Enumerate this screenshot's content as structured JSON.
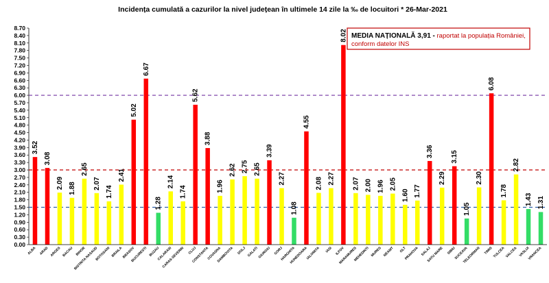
{
  "chart_data": {
    "type": "bar",
    "title": "Incidența cumulată a cazurilor la nivel județean în ultimele 14 zile   la ‰ de locuitori  *  26-Mar-2021",
    "xlabel": "",
    "ylabel": "",
    "ylim": [
      0,
      8.7
    ],
    "yticks": [
      "0.00",
      "0.30",
      "0.60",
      "0.90",
      "1.20",
      "1.50",
      "1.80",
      "2.10",
      "2.40",
      "2.70",
      "3.00",
      "3.30",
      "3.60",
      "3.90",
      "4.20",
      "4.50",
      "4.80",
      "5.10",
      "5.40",
      "5.70",
      "6.00",
      "6.30",
      "6.60",
      "6.90",
      "7.20",
      "7.50",
      "7.80",
      "8.10",
      "8.40",
      "8.70"
    ],
    "categories": [
      "ALBA",
      "ARAD",
      "ARGES",
      "BACAU",
      "BIHOR",
      "BISTRITA NASAUD",
      "BOTOSANI",
      "BRAILA",
      "BRASOV",
      "BUCURESTI",
      "BUZAU",
      "CALARASI",
      "CARAS-SEVERIN",
      "CLUJ",
      "CONSTANTA",
      "COVASNA",
      "DAMBOVITA",
      "DOLJ",
      "GALATI",
      "GIURGIU",
      "GORJ",
      "HARGHITA",
      "HUNEDOARA",
      "IALOMITA",
      "IASI",
      "ILFOV",
      "MARAMURES",
      "MEHEDINTI",
      "MURES",
      "NEAMT",
      "OLT",
      "PRAHOVA",
      "SALAJ",
      "SATU MARE",
      "SIBIU",
      "SUCEAVA",
      "TELEORMAN",
      "TIMIS",
      "TULCEA",
      "VALCEA",
      "VASLUI",
      "VRANCEA"
    ],
    "values": [
      3.52,
      3.08,
      2.09,
      1.88,
      2.65,
      2.07,
      1.74,
      2.41,
      5.02,
      6.67,
      1.28,
      2.14,
      1.74,
      5.62,
      3.88,
      1.96,
      2.62,
      2.75,
      2.65,
      3.39,
      2.27,
      1.08,
      4.55,
      2.08,
      2.27,
      8.02,
      2.07,
      2.0,
      1.96,
      2.05,
      1.6,
      1.77,
      3.36,
      2.29,
      3.15,
      1.05,
      2.3,
      6.08,
      1.78,
      2.82,
      1.43,
      1.31
    ],
    "value_labels": [
      "3.52",
      "3.08",
      "2.09",
      "1.88",
      "2.65",
      "2.07",
      "1.74",
      "2.41",
      "5.02",
      "6.67",
      "1.28",
      "2.14",
      "1.74",
      "5.62",
      "3.88",
      "1.96",
      "2.62",
      "2.75",
      "2.65",
      "3.39",
      "2.27",
      "1.08",
      "4.55",
      "2.08",
      "2.27",
      "8.02",
      "2.07",
      "2.00",
      "1.96",
      "2.05",
      "1.60",
      "1.77",
      "3.36",
      "2.29",
      "3.15",
      "1.05",
      "2.30",
      "6.08",
      "1.78",
      "2.82",
      "1.43",
      "1.31"
    ],
    "thresholds": [
      {
        "value": 1.5,
        "color": "#2f5fa8",
        "style": "dashed"
      },
      {
        "value": 3.0,
        "color": "#c00000",
        "style": "dashed"
      },
      {
        "value": 6.0,
        "color": "#7030a0",
        "style": "dashed"
      }
    ],
    "colors": {
      "low": "#33dd66",
      "mid": "#ffff00",
      "high": "#ff0000"
    },
    "grid": false,
    "annotation": {
      "title": "MEDIA NAȚIONALĂ 3,91 -",
      "line1": " raportat la populația României,",
      "line2": "conform datelor INS",
      "border_color": "#c00000"
    }
  }
}
